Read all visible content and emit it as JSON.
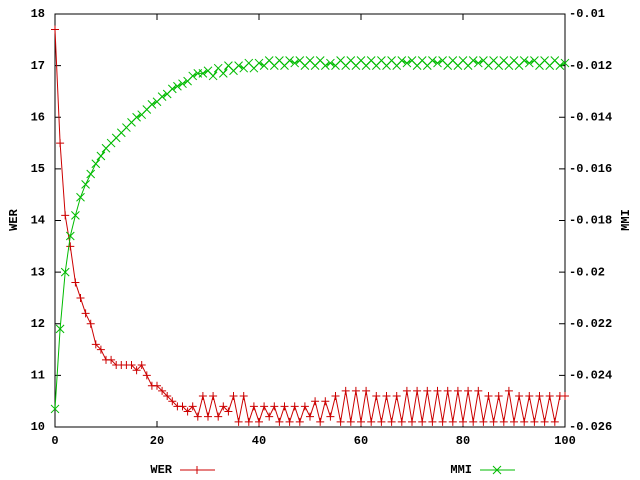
{
  "chart_data": {
    "type": "line",
    "ylabel": "WER",
    "y2label": "MMI",
    "xlim": [
      0,
      100
    ],
    "xticks": [
      0,
      20,
      40,
      60,
      80,
      100
    ],
    "ylim": [
      10,
      18
    ],
    "yticks": [
      10,
      11,
      12,
      13,
      14,
      15,
      16,
      17,
      18
    ],
    "y2lim": [
      -0.026,
      -0.01
    ],
    "y2ticks": [
      -0.026,
      -0.024,
      -0.022,
      -0.02,
      -0.018,
      -0.016,
      -0.014,
      -0.012,
      -0.01
    ],
    "x": [
      0,
      1,
      2,
      3,
      4,
      5,
      6,
      7,
      8,
      9,
      10,
      11,
      12,
      13,
      14,
      15,
      16,
      17,
      18,
      19,
      20,
      21,
      22,
      23,
      24,
      25,
      26,
      27,
      28,
      29,
      30,
      31,
      32,
      33,
      34,
      35,
      36,
      37,
      38,
      39,
      40,
      41,
      42,
      43,
      44,
      45,
      46,
      47,
      48,
      49,
      50,
      51,
      52,
      53,
      54,
      55,
      56,
      57,
      58,
      59,
      60,
      61,
      62,
      63,
      64,
      65,
      66,
      67,
      68,
      69,
      70,
      71,
      72,
      73,
      74,
      75,
      76,
      77,
      78,
      79,
      80,
      81,
      82,
      83,
      84,
      85,
      86,
      87,
      88,
      89,
      90,
      91,
      92,
      93,
      94,
      95,
      96,
      97,
      98,
      99,
      100
    ],
    "series": [
      {
        "name": "WER",
        "color": "#cc0000",
        "marker": "plus",
        "values": [
          17.7,
          15.5,
          14.1,
          13.5,
          12.8,
          12.5,
          12.2,
          12.0,
          11.6,
          11.5,
          11.3,
          11.3,
          11.2,
          11.2,
          11.2,
          11.2,
          11.1,
          11.2,
          11.0,
          10.8,
          10.8,
          10.7,
          10.6,
          10.5,
          10.4,
          10.4,
          10.3,
          10.4,
          10.2,
          10.6,
          10.2,
          10.6,
          10.2,
          10.4,
          10.3,
          10.6,
          10.1,
          10.6,
          10.1,
          10.4,
          10.1,
          10.4,
          10.2,
          10.4,
          10.1,
          10.4,
          10.1,
          10.4,
          10.1,
          10.4,
          10.2,
          10.5,
          10.1,
          10.5,
          10.2,
          10.6,
          10.1,
          10.7,
          10.1,
          10.7,
          10.1,
          10.7,
          10.1,
          10.6,
          10.1,
          10.6,
          10.1,
          10.6,
          10.1,
          10.7,
          10.1,
          10.7,
          10.1,
          10.7,
          10.1,
          10.7,
          10.1,
          10.7,
          10.1,
          10.7,
          10.1,
          10.7,
          10.1,
          10.7,
          10.1,
          10.6,
          10.1,
          10.6,
          10.1,
          10.7,
          10.1,
          10.6,
          10.1,
          10.6,
          10.1,
          10.6,
          10.1,
          10.6,
          10.1,
          10.6,
          10.6
        ]
      },
      {
        "name": "MMI",
        "color": "#00bb00",
        "marker": "cross",
        "axis": "y2",
        "values": [
          -0.0253,
          -0.0222,
          -0.02,
          -0.0186,
          -0.0178,
          -0.0171,
          -0.0166,
          -0.0162,
          -0.0158,
          -0.0155,
          -0.0152,
          -0.015,
          -0.0148,
          -0.0146,
          -0.0144,
          -0.0142,
          -0.014,
          -0.0139,
          -0.0137,
          -0.0135,
          -0.0134,
          -0.0132,
          -0.0131,
          -0.0129,
          -0.0128,
          -0.0127,
          -0.0126,
          -0.0124,
          -0.0123,
          -0.0123,
          -0.0122,
          -0.0124,
          -0.0121,
          -0.0123,
          -0.012,
          -0.0122,
          -0.012,
          -0.0121,
          -0.0119,
          -0.0121,
          -0.0119,
          -0.012,
          -0.0118,
          -0.012,
          -0.0118,
          -0.012,
          -0.0118,
          -0.0119,
          -0.0118,
          -0.012,
          -0.0118,
          -0.012,
          -0.0118,
          -0.012,
          -0.0119,
          -0.012,
          -0.0118,
          -0.012,
          -0.0118,
          -0.012,
          -0.0118,
          -0.012,
          -0.0118,
          -0.012,
          -0.0118,
          -0.012,
          -0.0118,
          -0.012,
          -0.0118,
          -0.0119,
          -0.0118,
          -0.012,
          -0.0118,
          -0.012,
          -0.0118,
          -0.0119,
          -0.0118,
          -0.012,
          -0.0118,
          -0.012,
          -0.0118,
          -0.012,
          -0.0118,
          -0.0119,
          -0.0118,
          -0.012,
          -0.0118,
          -0.012,
          -0.0118,
          -0.012,
          -0.0118,
          -0.012,
          -0.0118,
          -0.0119,
          -0.0118,
          -0.012,
          -0.0118,
          -0.012,
          -0.0118,
          -0.012,
          -0.0119
        ]
      }
    ]
  }
}
